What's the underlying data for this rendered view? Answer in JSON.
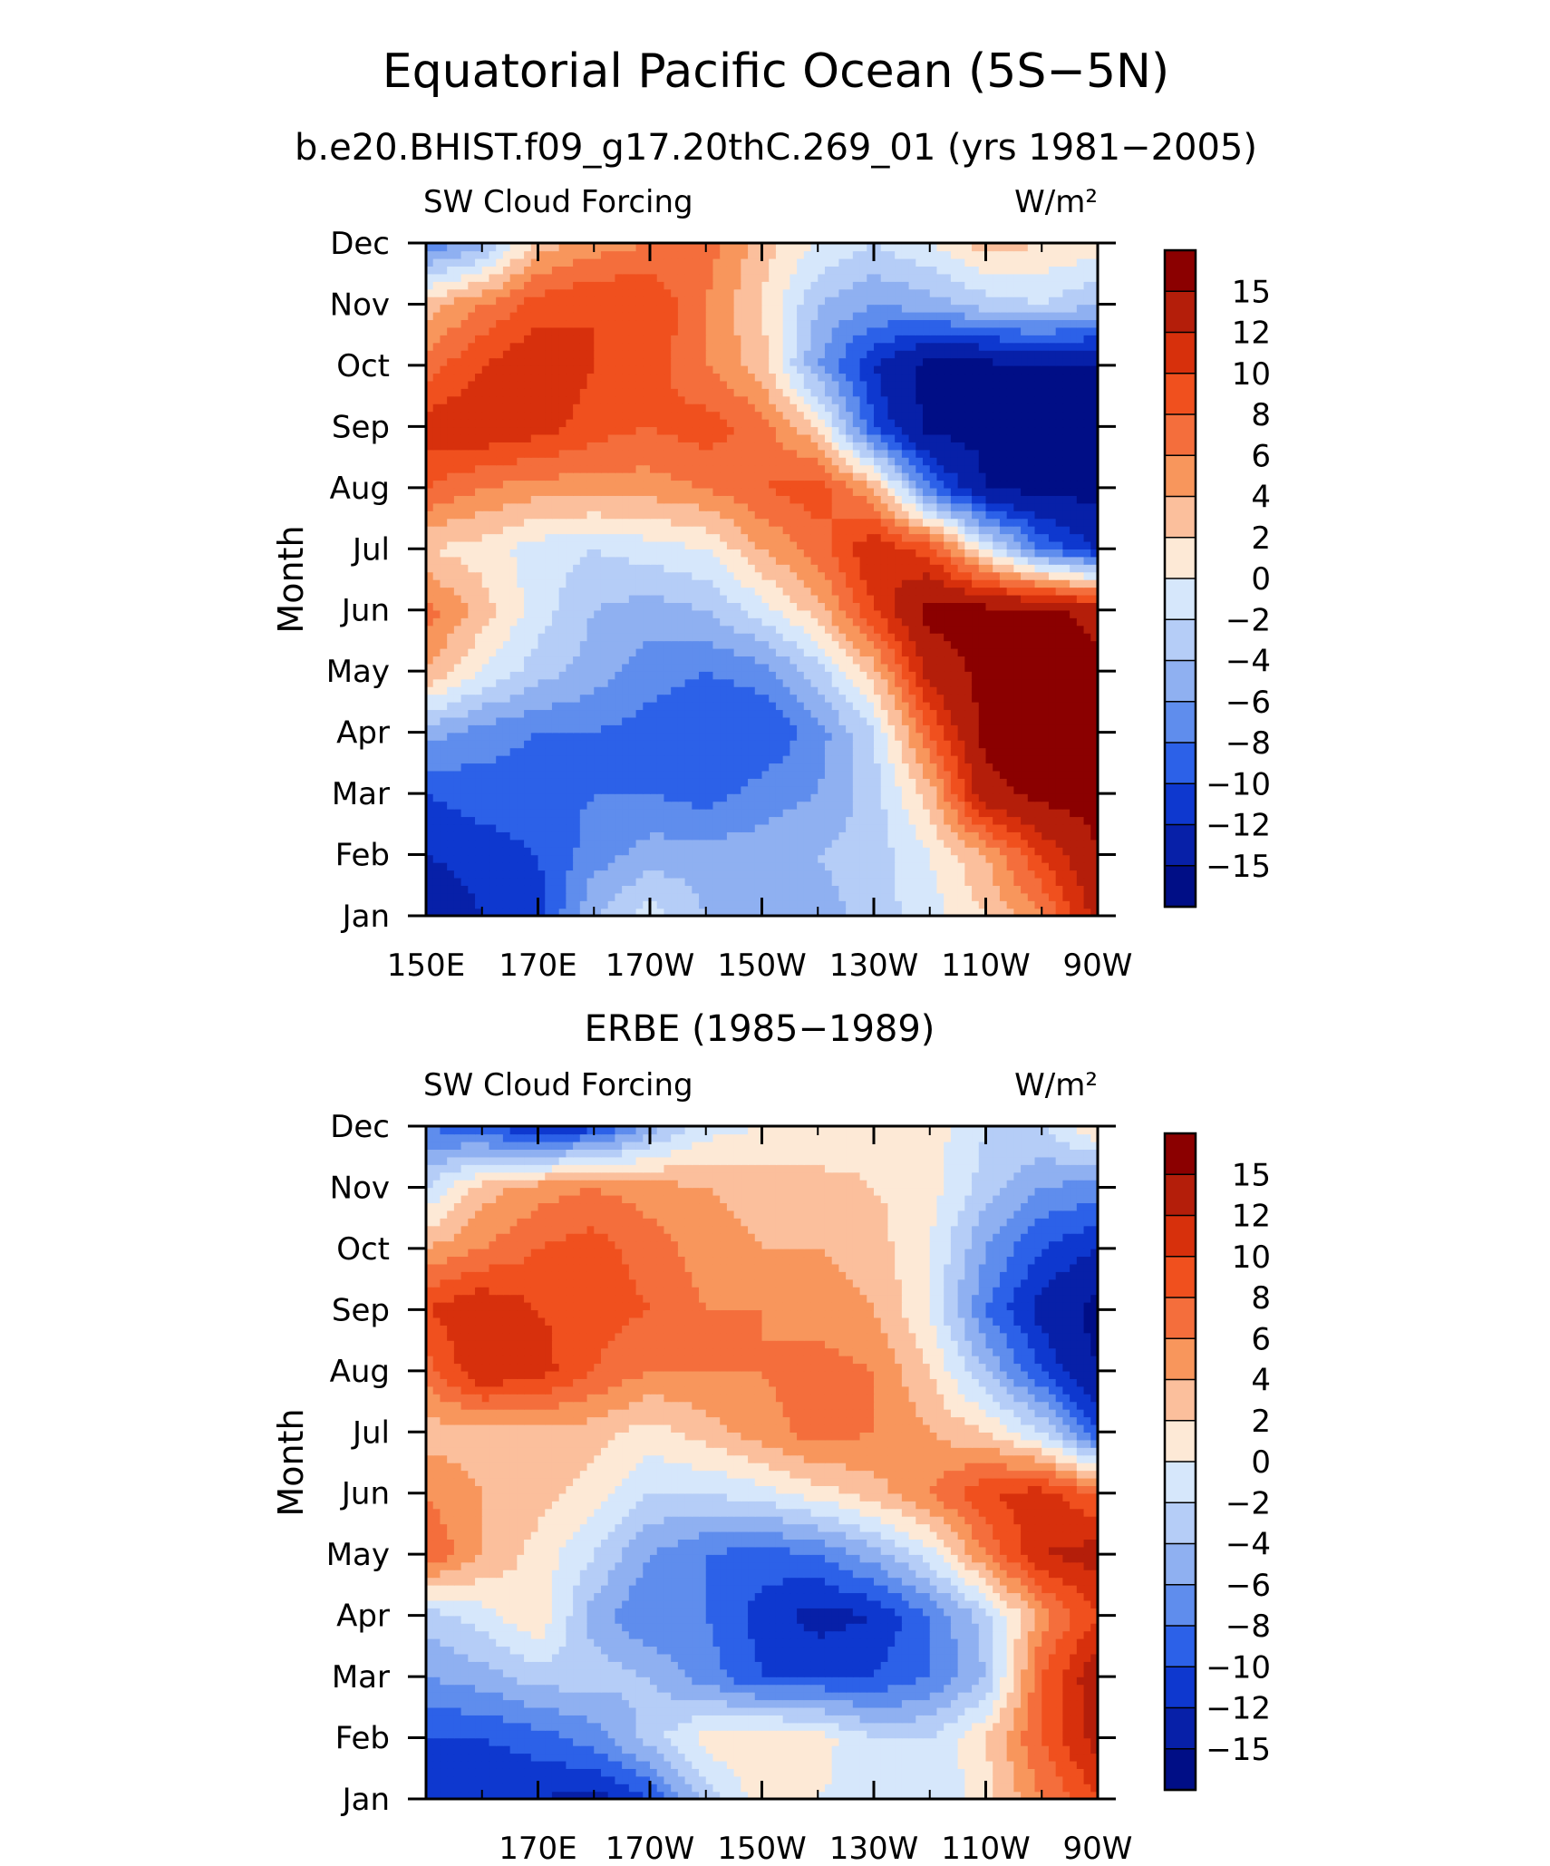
{
  "title": "Equatorial Pacific Ocean (5S−5N)",
  "colorbar": {
    "labels": [
      "15",
      "12",
      "10",
      "8",
      "6",
      "4",
      "2",
      "0",
      "−2",
      "−4",
      "−6",
      "−8",
      "−10",
      "−12",
      "−15"
    ],
    "colors": [
      "#8b0000",
      "#b41e0a",
      "#d7300c",
      "#f0501e",
      "#f46e3c",
      "#f8965c",
      "#fbbf9c",
      "#fde9d6",
      "#d6e7fb",
      "#b5cdf7",
      "#8fb0f1",
      "#5f8ded",
      "#2c61e8",
      "#0e38cf",
      "#0720a8",
      "#000e86"
    ]
  },
  "chart_data": [
    {
      "type": "heatmap",
      "title": "b.e20.BHIST.f09_g17.20thC.269_01 (yrs 1981−2005)",
      "left_label": "SW Cloud Forcing",
      "units": "W/m²",
      "ylabel": "Month",
      "xlim": [
        "150E",
        "90W"
      ],
      "xticks": [
        "150E",
        "170E",
        "170W",
        "150W",
        "130W",
        "110W",
        "90W"
      ],
      "yticks": [
        "Jan",
        "Feb",
        "Mar",
        "Apr",
        "May",
        "Jun",
        "Jul",
        "Aug",
        "Sep",
        "Oct",
        "Nov",
        "Dec"
      ],
      "x": [
        "150E",
        "160E",
        "170E",
        "180",
        "170W",
        "160W",
        "150W",
        "140W",
        "130W",
        "120W",
        "110W",
        "100W",
        "90W"
      ],
      "y": [
        "Jan",
        "Feb",
        "Mar",
        "Apr",
        "May",
        "Jun",
        "Jul",
        "Aug",
        "Sep",
        "Oct",
        "Nov",
        "Dec"
      ],
      "z": [
        [
          -14,
          -12,
          -11,
          -4,
          -1,
          -4,
          -5,
          -5,
          -3,
          -1,
          2,
          6,
          13
        ],
        [
          -12,
          -11,
          -10,
          -7,
          -5,
          -5,
          -5,
          -4,
          -3,
          0,
          4,
          10,
          15
        ],
        [
          -10,
          -9,
          -9,
          -8,
          -8,
          -9,
          -7,
          -6,
          -3,
          3,
          14,
          16,
          16
        ],
        [
          -5,
          -7,
          -8,
          -8,
          -9,
          -10,
          -10,
          -7,
          -2,
          8,
          16,
          16,
          16
        ],
        [
          4,
          0,
          -3,
          -5,
          -7,
          -8,
          -7,
          -3,
          3,
          13,
          16,
          16,
          16
        ],
        [
          7,
          3,
          -1,
          -4,
          -5,
          -4,
          -1,
          3,
          10,
          16,
          16,
          16,
          14
        ],
        [
          2,
          1,
          -1,
          -2,
          -1,
          0,
          4,
          7,
          12,
          9,
          0,
          -8,
          -12
        ],
        [
          8,
          6,
          5,
          5,
          5,
          6,
          8,
          9,
          4,
          -8,
          -15,
          -16,
          -16
        ],
        [
          11,
          12,
          11,
          9,
          8,
          9,
          7,
          2,
          -10,
          -16,
          -16,
          -16,
          -16
        ],
        [
          7,
          10,
          12,
          10,
          9,
          6,
          3,
          -6,
          -12,
          -16,
          -16,
          -15,
          -15
        ],
        [
          3,
          6,
          9,
          10,
          10,
          6,
          2,
          -4,
          -6,
          -5,
          -3,
          -2,
          -4
        ],
        [
          -8,
          -5,
          3,
          5,
          6,
          7,
          3,
          0,
          -2,
          0,
          3,
          2,
          1
        ]
      ]
    },
    {
      "type": "heatmap",
      "title": "ERBE (1985−1989)",
      "left_label": "SW Cloud Forcing",
      "units": "W/m²",
      "ylabel": "Month",
      "xlim": [
        "150E",
        "90W"
      ],
      "xticks": [
        "170E",
        "170W",
        "150W",
        "130W",
        "110W",
        "90W"
      ],
      "yticks": [
        "Jan",
        "Feb",
        "Mar",
        "Apr",
        "May",
        "Jun",
        "Jul",
        "Aug",
        "Sep",
        "Oct",
        "Nov",
        "Dec"
      ],
      "x": [
        "150E",
        "160E",
        "170E",
        "180",
        "170W",
        "160W",
        "150W",
        "140W",
        "130W",
        "120W",
        "110W",
        "100W",
        "90W"
      ],
      "y": [
        "Jan",
        "Feb",
        "Mar",
        "Apr",
        "May",
        "Jun",
        "Jul",
        "Aug",
        "Sep",
        "Oct",
        "Nov",
        "Dec"
      ],
      "z": [
        [
          -12,
          -12,
          -12,
          -13,
          -10,
          -3,
          1,
          0,
          -1,
          -2,
          1,
          6,
          10
        ],
        [
          -10,
          -10,
          -9,
          -7,
          -3,
          1,
          2,
          1,
          -2,
          -2,
          2,
          8,
          13
        ],
        [
          -6,
          -5,
          -3,
          -3,
          -4,
          -7,
          -10,
          -10,
          -10,
          -8,
          -4,
          8,
          14
        ],
        [
          -3,
          -1,
          2,
          -5,
          -8,
          -8,
          -11,
          -13,
          -12,
          -8,
          -3,
          5,
          10
        ],
        [
          8,
          4,
          1,
          -2,
          -6,
          -8,
          -9,
          -8,
          -5,
          -1,
          6,
          12,
          13
        ],
        [
          6,
          4,
          3,
          1,
          -2,
          -2,
          -1,
          1,
          3,
          6,
          10,
          11,
          8
        ],
        [
          3,
          3,
          3,
          3,
          1,
          3,
          5,
          7,
          6,
          4,
          2,
          -2,
          -10
        ],
        [
          7,
          12,
          11,
          8,
          6,
          6,
          6,
          7,
          6,
          2,
          -4,
          -10,
          -15
        ],
        [
          10,
          12,
          10,
          9,
          8,
          6,
          6,
          5,
          4,
          0,
          -8,
          -13,
          -16
        ],
        [
          4,
          6,
          8,
          9,
          7,
          5,
          4,
          4,
          3,
          0,
          -6,
          -10,
          -12
        ],
        [
          -2,
          3,
          5,
          6,
          5,
          4,
          3,
          3,
          2,
          1,
          -3,
          -6,
          -7
        ],
        [
          -8,
          -10,
          -12,
          -11,
          -5,
          -1,
          0,
          0,
          1,
          1,
          -2,
          -2,
          2
        ]
      ]
    }
  ]
}
